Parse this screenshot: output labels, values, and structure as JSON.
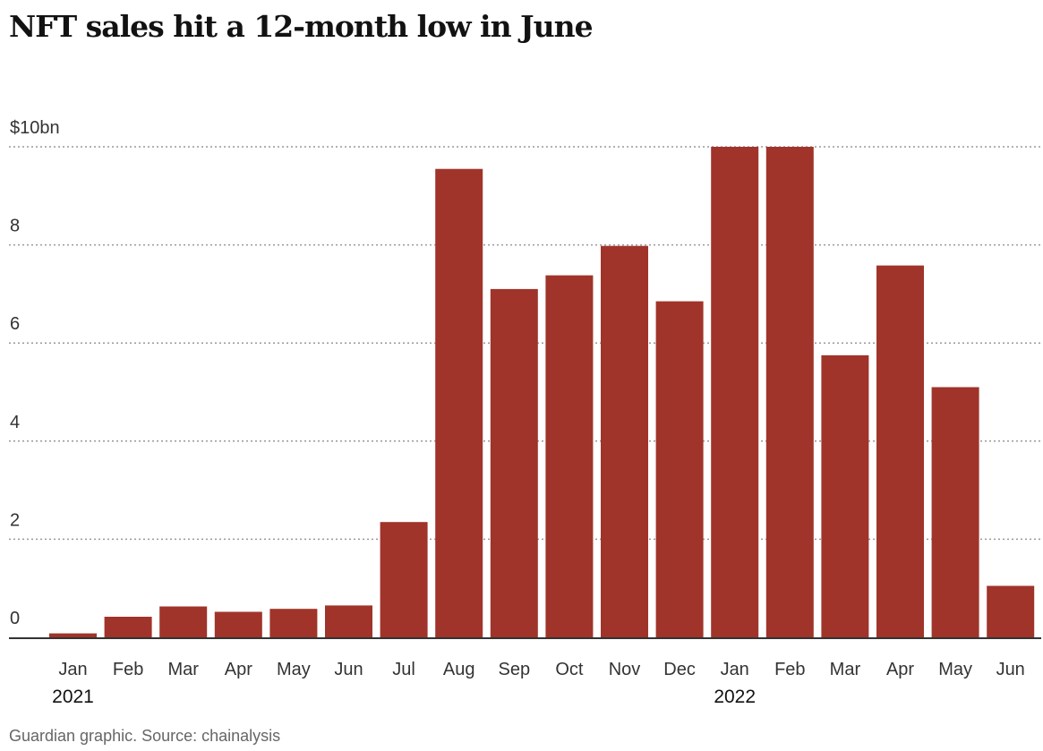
{
  "title": "NFT sales hit a 12-month low in June",
  "source": "Guardian graphic. Source: chainalysis",
  "colors": {
    "bar": "#a0342a",
    "grid": "#999999",
    "axis": "#333333"
  },
  "chart_data": {
    "type": "bar",
    "title": "NFT sales hit a 12-month low in June",
    "xlabel": "",
    "ylabel": "",
    "ylim": [
      0,
      10
    ],
    "yticks": [
      0,
      2,
      4,
      6,
      8,
      10
    ],
    "ytick_labels": [
      "0",
      "2",
      "4",
      "6",
      "8",
      "$10bn"
    ],
    "grid": true,
    "categories": [
      "Jan",
      "Feb",
      "Mar",
      "Apr",
      "May",
      "Jun",
      "Jul",
      "Aug",
      "Sep",
      "Oct",
      "Nov",
      "Dec",
      "Jan",
      "Feb",
      "Mar",
      "Apr",
      "May",
      "Jun"
    ],
    "year_labels": [
      {
        "index": 0,
        "label": "2021"
      },
      {
        "index": 12,
        "label": "2022"
      }
    ],
    "values": [
      0.08,
      0.42,
      0.63,
      0.52,
      0.58,
      0.65,
      2.35,
      9.55,
      7.1,
      7.38,
      7.98,
      6.85,
      10.0,
      10.0,
      5.75,
      7.58,
      5.1,
      1.05
    ]
  }
}
